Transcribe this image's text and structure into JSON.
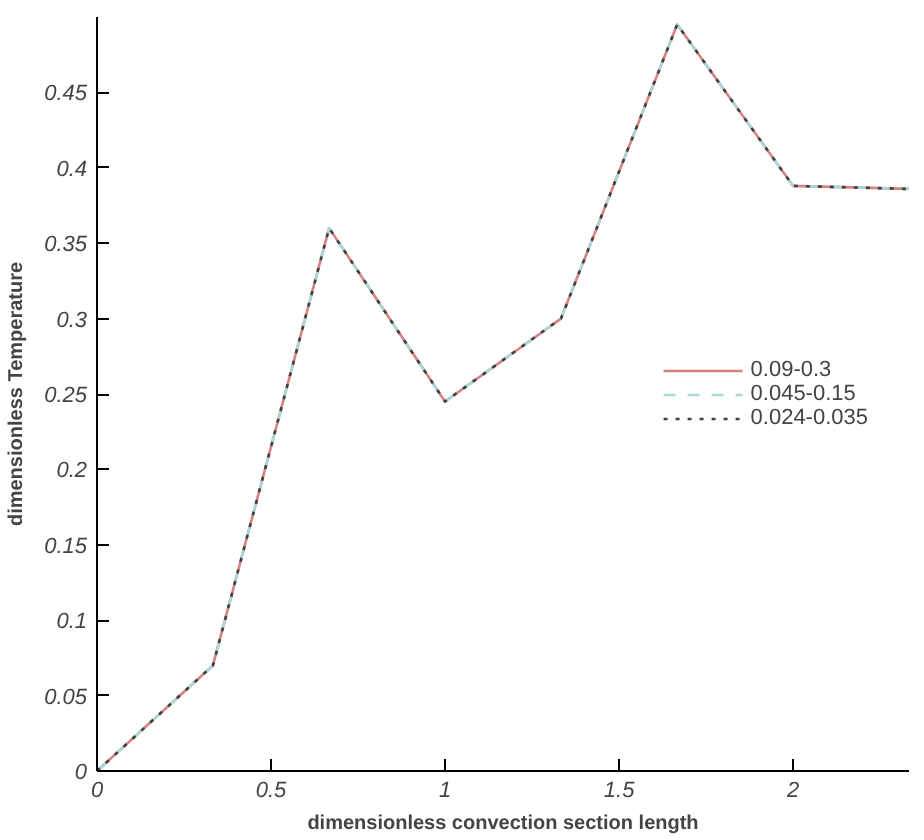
{
  "chart_data": {
    "type": "line",
    "xlabel": "dimensionless convection section length",
    "ylabel": "dimensionless Temperature",
    "x": [
      0,
      0.333,
      0.667,
      1,
      1.333,
      1.667,
      2,
      2.333
    ],
    "series": [
      {
        "name": "0.09-0.3",
        "color": "#d98080",
        "line_style": "solid",
        "values": [
          0,
          0.07,
          0.36,
          0.245,
          0.3,
          0.495,
          0.388,
          0.386
        ]
      },
      {
        "name": "0.045-0.15",
        "color": "#a8d8d8",
        "line_style": "dashed",
        "values": [
          0,
          0.07,
          0.36,
          0.245,
          0.3,
          0.495,
          0.388,
          0.386
        ]
      },
      {
        "name": "0.024-0.035",
        "color": "#404040",
        "line_style": "dotted",
        "values": [
          0,
          0.07,
          0.36,
          0.245,
          0.3,
          0.495,
          0.388,
          0.386
        ]
      }
    ],
    "xlim": [
      0,
      2.333
    ],
    "ylim": [
      0,
      0.5
    ],
    "xticks": [
      0,
      0.5,
      1,
      1.5,
      2
    ],
    "yticks": [
      0,
      0.05,
      0.1,
      0.15,
      0.2,
      0.25,
      0.3,
      0.35,
      0.4,
      0.45
    ],
    "grid": false,
    "legend": "right",
    "marker": "none"
  }
}
